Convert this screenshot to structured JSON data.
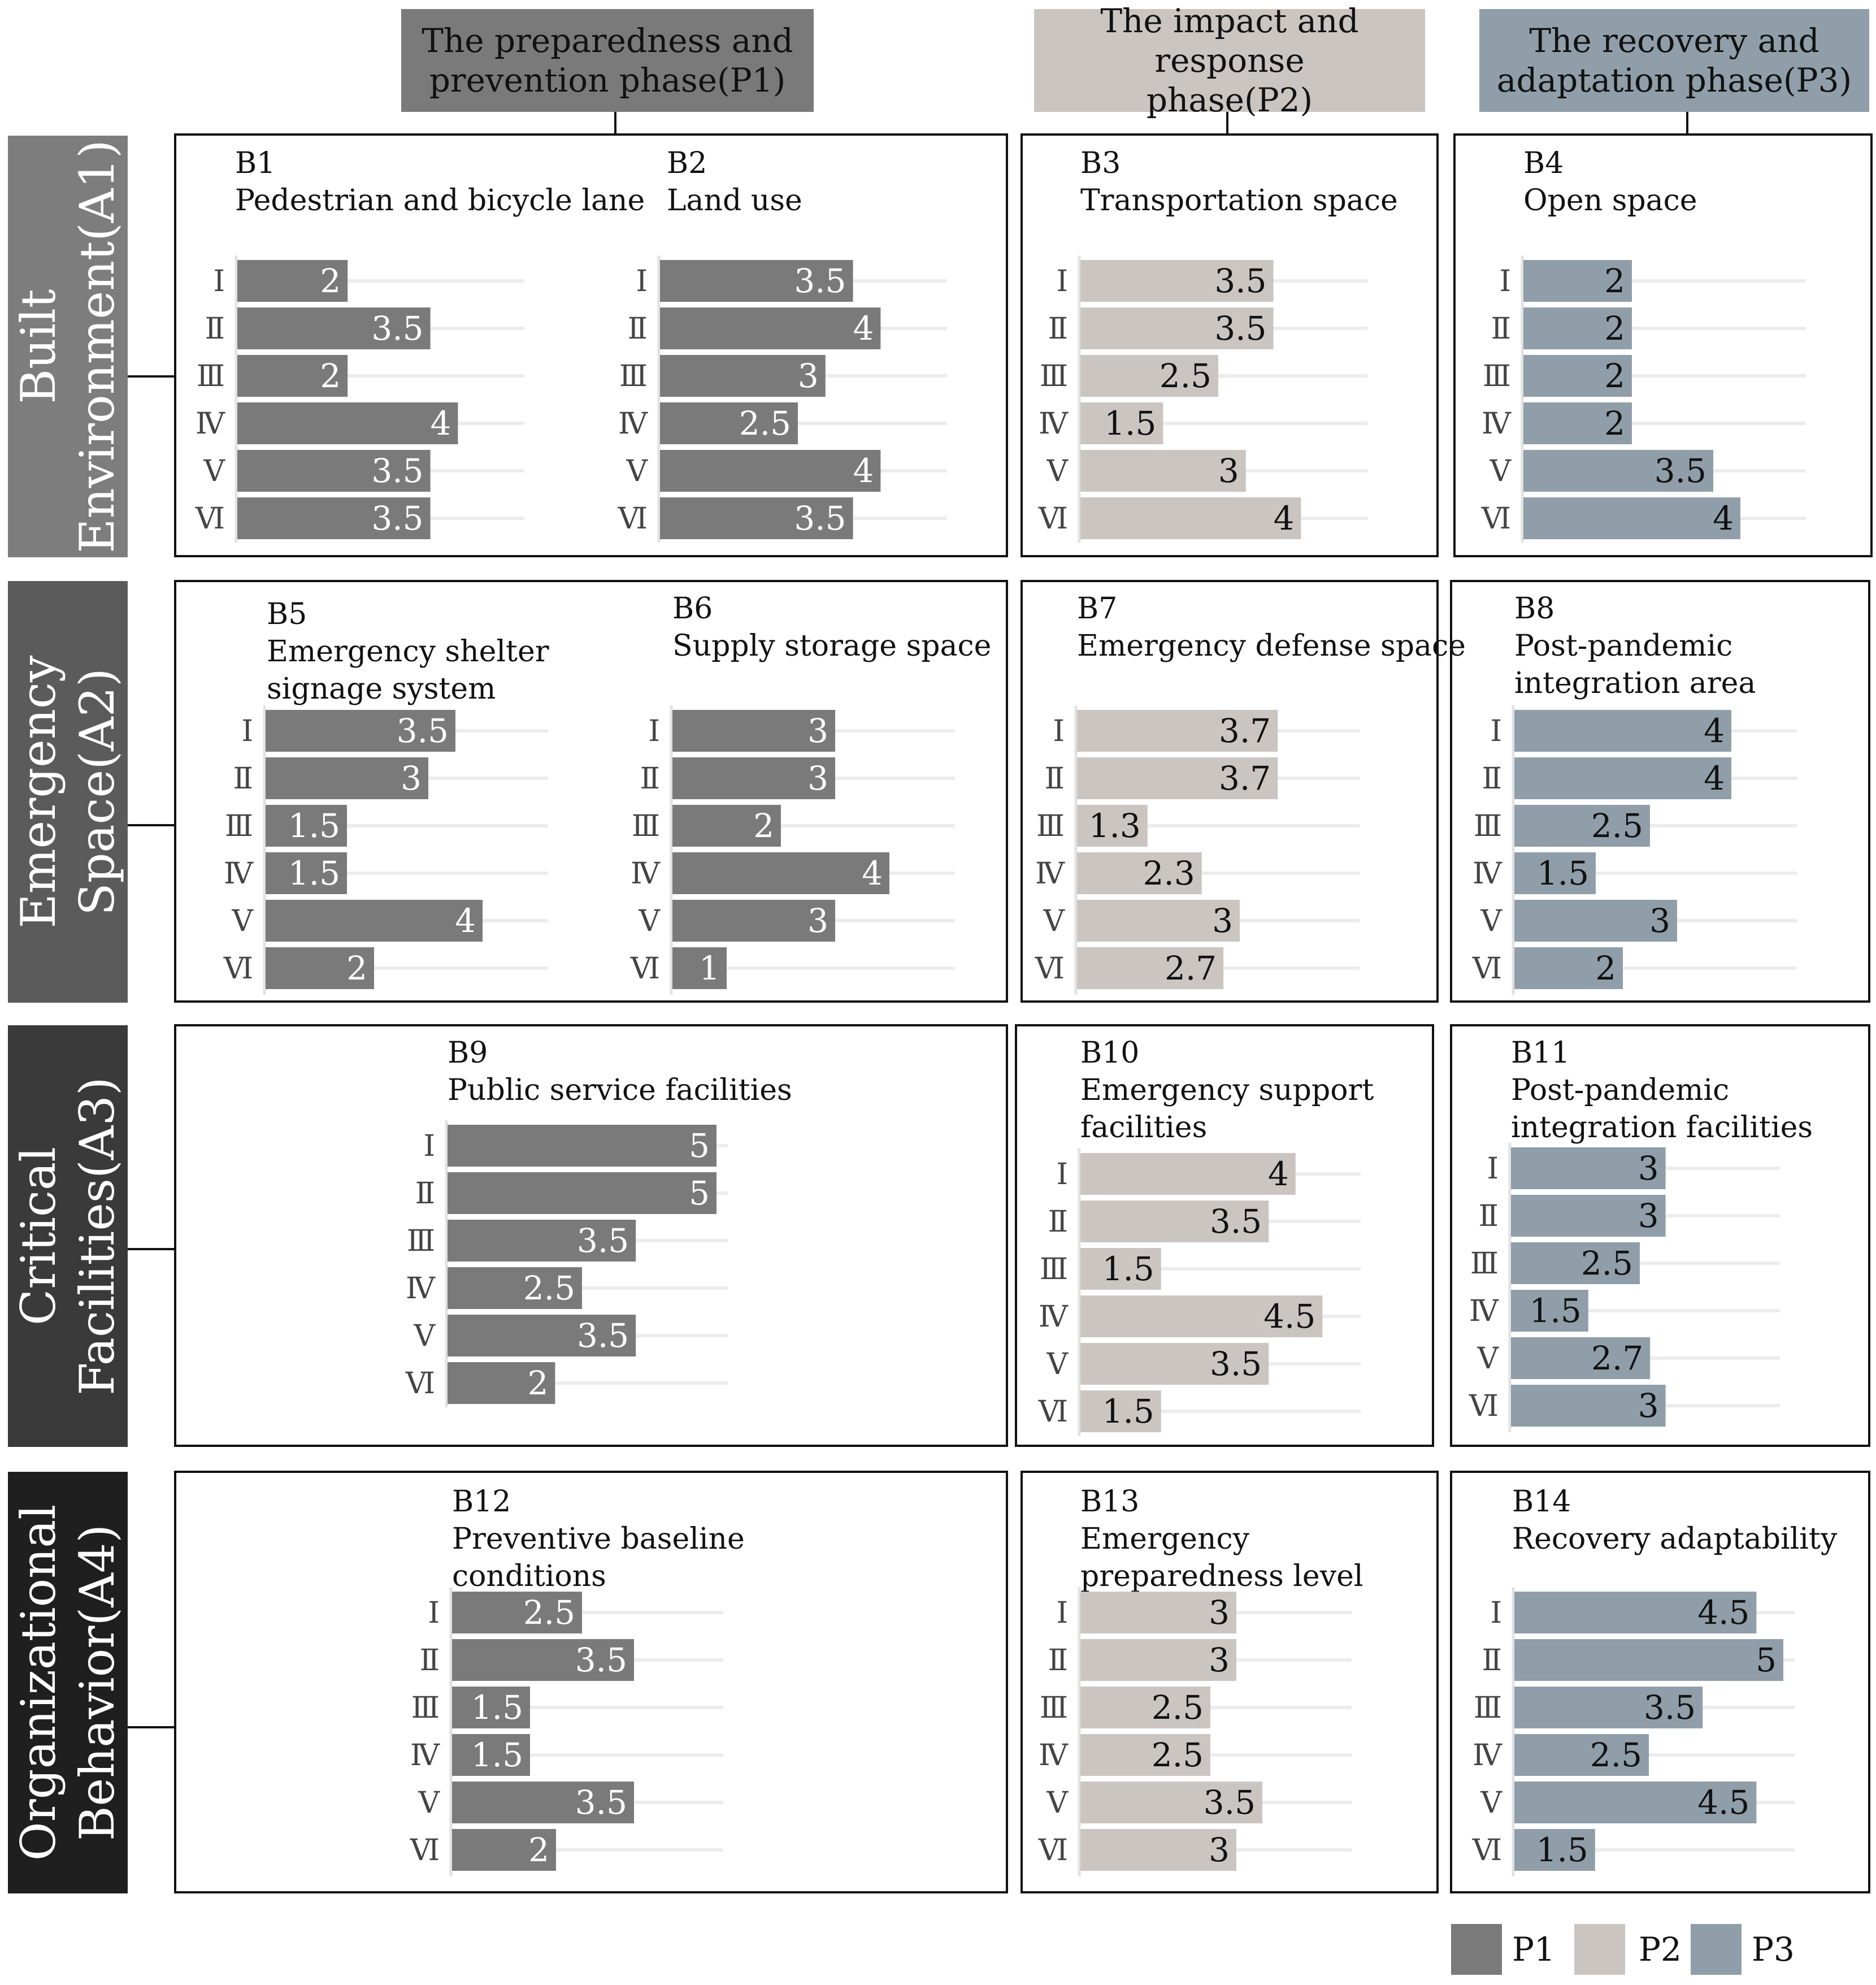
{
  "phases": [
    {
      "id": "P1",
      "label": "The preparedness and\nprevention phase(P1)",
      "color": "#7a7a7a",
      "text_color": "#111111"
    },
    {
      "id": "P2",
      "label": "The impact and response\nphase(P2)",
      "color": "#cbc5c2",
      "text_color": "#111111"
    },
    {
      "id": "P3",
      "label": "The recovery and\nadaptation phase(P3)",
      "color": "#8f9ea8",
      "text_color": "#111111"
    }
  ],
  "rows": [
    {
      "id": "A1",
      "label": "Built\nEnvironment(A1)",
      "color": "#7d7d7d"
    },
    {
      "id": "A2",
      "label": "Emergency\nSpace(A2)",
      "color": "#5b5b5b"
    },
    {
      "id": "A3",
      "label": "Critical\nFacilities(A3)",
      "color": "#3a3a3a"
    },
    {
      "id": "A4",
      "label": "Organizational\nBehavior(A4)",
      "color": "#1f1f1f"
    }
  ],
  "legend": [
    {
      "label": "P1",
      "color": "#7a7a7a"
    },
    {
      "label": "P2",
      "color": "#cbc5c2"
    },
    {
      "label": "P3",
      "color": "#8f9ea8"
    }
  ],
  "chart_data": [
    {
      "id": "B1",
      "type": "bar",
      "orientation": "horizontal",
      "phase": "P1",
      "title": "B1\nPedestrian and bicycle lane",
      "categories": [
        "Ⅰ",
        "Ⅱ",
        "Ⅲ",
        "Ⅳ",
        "Ⅴ",
        "Ⅵ"
      ],
      "values": [
        2,
        3.5,
        2,
        4,
        3.5,
        3.5
      ],
      "labels": [
        "2",
        "3.5",
        "2",
        "4",
        "3.5",
        "3.5"
      ],
      "xlim": [
        0,
        5
      ]
    },
    {
      "id": "B2",
      "type": "bar",
      "orientation": "horizontal",
      "phase": "P1",
      "title": "B2\nLand use",
      "categories": [
        "Ⅰ",
        "Ⅱ",
        "Ⅲ",
        "Ⅳ",
        "Ⅴ",
        "Ⅵ"
      ],
      "values": [
        3.5,
        4,
        3,
        2.5,
        4,
        3.5
      ],
      "labels": [
        "3.5",
        "4",
        "3",
        "2.5",
        "4",
        "3.5"
      ],
      "xlim": [
        0,
        5
      ]
    },
    {
      "id": "B3",
      "type": "bar",
      "orientation": "horizontal",
      "phase": "P2",
      "title": "B3\nTransportation space",
      "categories": [
        "Ⅰ",
        "Ⅱ",
        "Ⅲ",
        "Ⅳ",
        "Ⅴ",
        "Ⅵ"
      ],
      "values": [
        3.5,
        3.5,
        2.5,
        1.5,
        3,
        4
      ],
      "labels": [
        "3.5",
        "3.5",
        "2.5",
        "1.5",
        "3",
        "4"
      ],
      "xlim": [
        0,
        5
      ]
    },
    {
      "id": "B4",
      "type": "bar",
      "orientation": "horizontal",
      "phase": "P3",
      "title": "B4\nOpen space",
      "categories": [
        "Ⅰ",
        "Ⅱ",
        "Ⅲ",
        "Ⅳ",
        "Ⅴ",
        "Ⅵ"
      ],
      "values": [
        2,
        2,
        2,
        2,
        3.5,
        4
      ],
      "labels": [
        "2",
        "2",
        "2",
        "2",
        "3.5",
        "4"
      ],
      "xlim": [
        0,
        5
      ]
    },
    {
      "id": "B5",
      "type": "bar",
      "orientation": "horizontal",
      "phase": "P1",
      "title": "B5\nEmergency shelter\nsignage system",
      "categories": [
        "Ⅰ",
        "Ⅱ",
        "Ⅲ",
        "Ⅳ",
        "Ⅴ",
        "Ⅵ"
      ],
      "values": [
        3.5,
        3,
        1.5,
        1.5,
        4,
        2
      ],
      "labels": [
        "3.5",
        "3",
        "1.5",
        "1.5",
        "4",
        "2"
      ],
      "xlim": [
        0,
        5
      ]
    },
    {
      "id": "B6",
      "type": "bar",
      "orientation": "horizontal",
      "phase": "P1",
      "title": "B6\nSupply storage space",
      "categories": [
        "Ⅰ",
        "Ⅱ",
        "Ⅲ",
        "Ⅳ",
        "Ⅴ",
        "Ⅵ"
      ],
      "values": [
        3,
        3,
        2,
        4,
        3,
        1
      ],
      "labels": [
        "3",
        "3",
        "2",
        "4",
        "3",
        "1"
      ],
      "xlim": [
        0,
        5
      ]
    },
    {
      "id": "B7",
      "type": "bar",
      "orientation": "horizontal",
      "phase": "P2",
      "title": "B7\nEmergency defense space",
      "categories": [
        "Ⅰ",
        "Ⅱ",
        "Ⅲ",
        "Ⅳ",
        "Ⅴ",
        "Ⅵ"
      ],
      "values": [
        3.7,
        3.7,
        1.3,
        2.3,
        3,
        2.7
      ],
      "labels": [
        "3.7",
        "3.7",
        "1.3",
        "2.3",
        "3",
        "2.7"
      ],
      "xlim": [
        0,
        5
      ]
    },
    {
      "id": "B8",
      "type": "bar",
      "orientation": "horizontal",
      "phase": "P3",
      "title": "B8\nPost-pandemic\nintegration area",
      "categories": [
        "Ⅰ",
        "Ⅱ",
        "Ⅲ",
        "Ⅳ",
        "Ⅴ",
        "Ⅵ"
      ],
      "values": [
        4,
        4,
        2.5,
        1.5,
        3,
        2
      ],
      "labels": [
        "4",
        "4",
        "2.5",
        "1.5",
        "3",
        "2"
      ],
      "xlim": [
        0,
        5
      ]
    },
    {
      "id": "B9",
      "type": "bar",
      "orientation": "horizontal",
      "phase": "P1",
      "title": "B9\nPublic service facilities",
      "categories": [
        "Ⅰ",
        "Ⅱ",
        "Ⅲ",
        "Ⅳ",
        "Ⅴ",
        "Ⅵ"
      ],
      "values": [
        5,
        5,
        3.5,
        2.5,
        3.5,
        2
      ],
      "labels": [
        "5",
        "5",
        "3.5",
        "2.5",
        "3.5",
        "2"
      ],
      "xlim": [
        0,
        5
      ]
    },
    {
      "id": "B10",
      "type": "bar",
      "orientation": "horizontal",
      "phase": "P2",
      "title": "B10\nEmergency support\nfacilities",
      "categories": [
        "Ⅰ",
        "Ⅱ",
        "Ⅲ",
        "Ⅳ",
        "Ⅴ",
        "Ⅵ"
      ],
      "values": [
        4,
        3.5,
        1.5,
        4.5,
        3.5,
        1.5
      ],
      "labels": [
        "4",
        "3.5",
        "1.5",
        "4.5",
        "3.5",
        "1.5"
      ],
      "xlim": [
        0,
        5
      ]
    },
    {
      "id": "B11",
      "type": "bar",
      "orientation": "horizontal",
      "phase": "P3",
      "title": "B11\nPost-pandemic\nintegration facilities",
      "categories": [
        "Ⅰ",
        "Ⅱ",
        "Ⅲ",
        "Ⅳ",
        "Ⅴ",
        "Ⅵ"
      ],
      "values": [
        3,
        3,
        2.5,
        1.5,
        2.7,
        3
      ],
      "labels": [
        "3",
        "3",
        "2.5",
        "1.5",
        "2.7",
        "3"
      ],
      "xlim": [
        0,
        5
      ]
    },
    {
      "id": "B12",
      "type": "bar",
      "orientation": "horizontal",
      "phase": "P1",
      "title": "B12\nPreventive baseline\nconditions",
      "categories": [
        "Ⅰ",
        "Ⅱ",
        "Ⅲ",
        "Ⅳ",
        "Ⅴ",
        "Ⅵ"
      ],
      "values": [
        2.5,
        3.5,
        1.5,
        1.5,
        3.5,
        2
      ],
      "labels": [
        "2.5",
        "3.5",
        "1.5",
        "1.5",
        "3.5",
        "2"
      ],
      "xlim": [
        0,
        5
      ]
    },
    {
      "id": "B13",
      "type": "bar",
      "orientation": "horizontal",
      "phase": "P2",
      "title": "B13\nEmergency\npreparedness level",
      "categories": [
        "Ⅰ",
        "Ⅱ",
        "Ⅲ",
        "Ⅳ",
        "Ⅴ",
        "Ⅵ"
      ],
      "values": [
        3,
        3,
        2.5,
        2.5,
        3.5,
        3
      ],
      "labels": [
        "3",
        "3",
        "2.5",
        "2.5",
        "3.5",
        "3"
      ],
      "xlim": [
        0,
        5
      ]
    },
    {
      "id": "B14",
      "type": "bar",
      "orientation": "horizontal",
      "phase": "P3",
      "title": "B14\n Recovery adaptability",
      "categories": [
        "Ⅰ",
        "Ⅱ",
        "Ⅲ",
        "Ⅳ",
        "Ⅴ",
        "Ⅵ"
      ],
      "values": [
        4.5,
        5,
        3.5,
        2.5,
        4.5,
        1.5
      ],
      "labels": [
        "4.5",
        "5",
        "3.5",
        "2.5",
        "4.5",
        "1.5"
      ],
      "xlim": [
        0,
        5
      ]
    }
  ]
}
